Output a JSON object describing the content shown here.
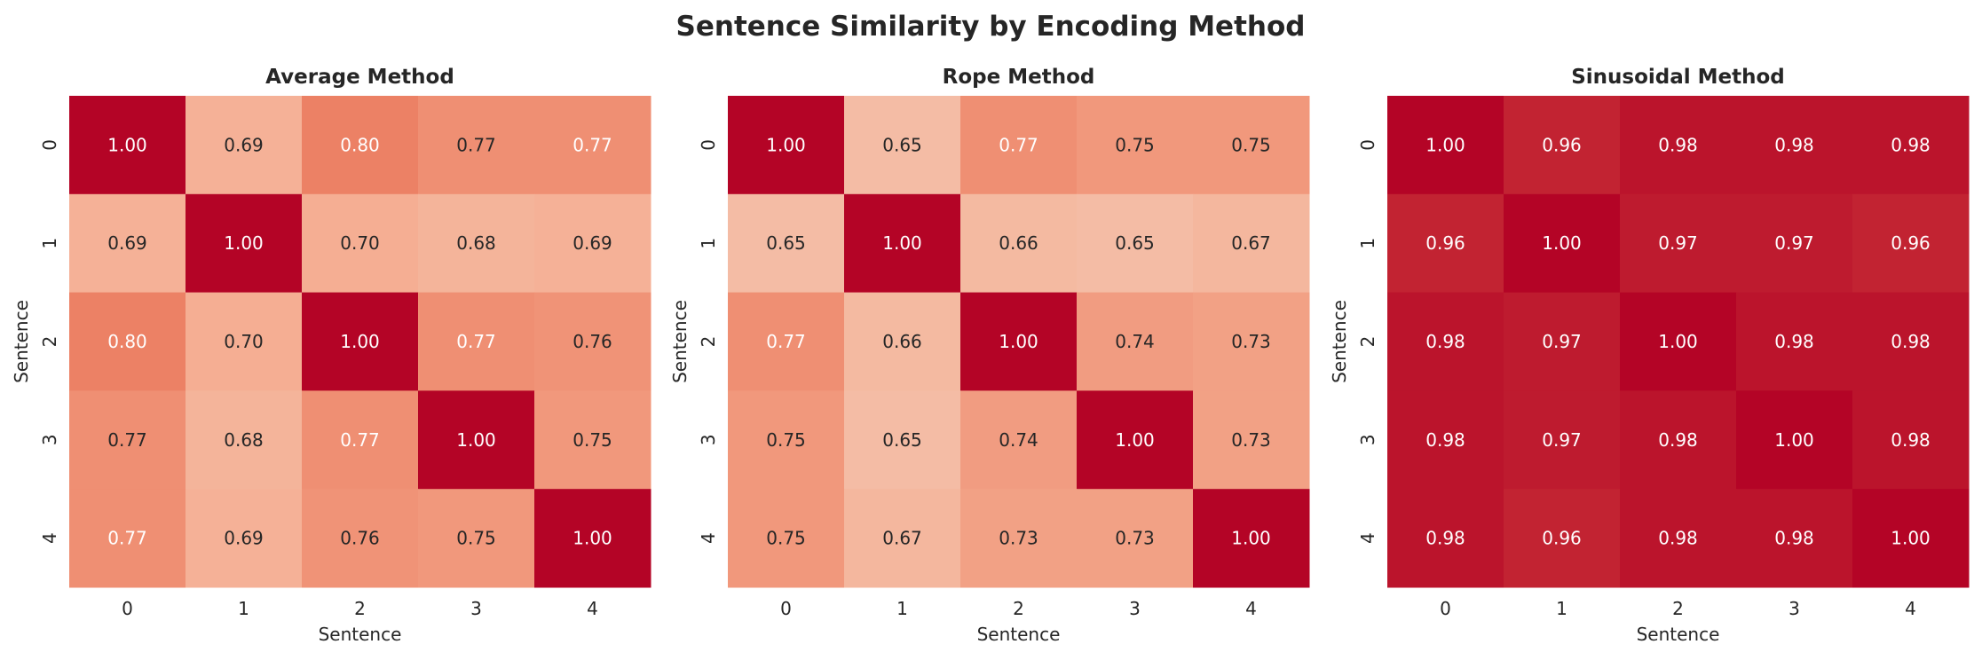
{
  "title": "Sentence Similarity by Encoding Method",
  "chart_data": [
    {
      "type": "heatmap",
      "title": "Average Method",
      "xlabel": "Sentence",
      "ylabel": "Sentence",
      "x_ticks": [
        "0",
        "1",
        "2",
        "3",
        "4"
      ],
      "y_ticks": [
        "0",
        "1",
        "2",
        "3",
        "4"
      ],
      "values": [
        [
          1.0,
          0.69,
          0.8,
          0.77,
          0.77
        ],
        [
          0.69,
          1.0,
          0.7,
          0.68,
          0.69
        ],
        [
          0.8,
          0.7,
          1.0,
          0.77,
          0.76
        ],
        [
          0.77,
          0.68,
          0.77,
          1.0,
          0.75
        ],
        [
          0.77,
          0.69,
          0.76,
          0.75,
          1.0
        ]
      ],
      "annotation_colors": [
        [
          "light",
          "dark",
          "light",
          "dark",
          "light"
        ],
        [
          "dark",
          "light",
          "dark",
          "dark",
          "dark"
        ],
        [
          "light",
          "dark",
          "light",
          "light",
          "dark"
        ],
        [
          "dark",
          "dark",
          "light",
          "light",
          "dark"
        ],
        [
          "light",
          "dark",
          "dark",
          "dark",
          "light"
        ]
      ]
    },
    {
      "type": "heatmap",
      "title": "Rope Method",
      "xlabel": "Sentence",
      "ylabel": "Sentence",
      "x_ticks": [
        "0",
        "1",
        "2",
        "3",
        "4"
      ],
      "y_ticks": [
        "0",
        "1",
        "2",
        "3",
        "4"
      ],
      "values": [
        [
          1.0,
          0.65,
          0.77,
          0.75,
          0.75
        ],
        [
          0.65,
          1.0,
          0.66,
          0.65,
          0.67
        ],
        [
          0.77,
          0.66,
          1.0,
          0.74,
          0.73
        ],
        [
          0.75,
          0.65,
          0.74,
          1.0,
          0.73
        ],
        [
          0.75,
          0.67,
          0.73,
          0.73,
          1.0
        ]
      ],
      "annotation_colors": [
        [
          "light",
          "dark",
          "light",
          "dark",
          "dark"
        ],
        [
          "dark",
          "light",
          "dark",
          "dark",
          "dark"
        ],
        [
          "light",
          "dark",
          "light",
          "dark",
          "dark"
        ],
        [
          "dark",
          "dark",
          "dark",
          "light",
          "dark"
        ],
        [
          "dark",
          "dark",
          "dark",
          "dark",
          "light"
        ]
      ]
    },
    {
      "type": "heatmap",
      "title": "Sinusoidal Method",
      "xlabel": "Sentence",
      "ylabel": "Sentence",
      "x_ticks": [
        "0",
        "1",
        "2",
        "3",
        "4"
      ],
      "y_ticks": [
        "0",
        "1",
        "2",
        "3",
        "4"
      ],
      "values": [
        [
          1.0,
          0.96,
          0.98,
          0.98,
          0.98
        ],
        [
          0.96,
          1.0,
          0.97,
          0.97,
          0.96
        ],
        [
          0.98,
          0.97,
          1.0,
          0.98,
          0.98
        ],
        [
          0.98,
          0.97,
          0.98,
          1.0,
          0.98
        ],
        [
          0.98,
          0.96,
          0.98,
          0.98,
          1.0
        ]
      ],
      "annotation_colors": [
        [
          "light",
          "light",
          "light",
          "light",
          "light"
        ],
        [
          "light",
          "light",
          "light",
          "light",
          "light"
        ],
        [
          "light",
          "light",
          "light",
          "light",
          "light"
        ],
        [
          "light",
          "light",
          "light",
          "light",
          "light"
        ],
        [
          "light",
          "light",
          "light",
          "light",
          "light"
        ]
      ]
    }
  ],
  "colormap": "coolwarm",
  "colorbar": false
}
